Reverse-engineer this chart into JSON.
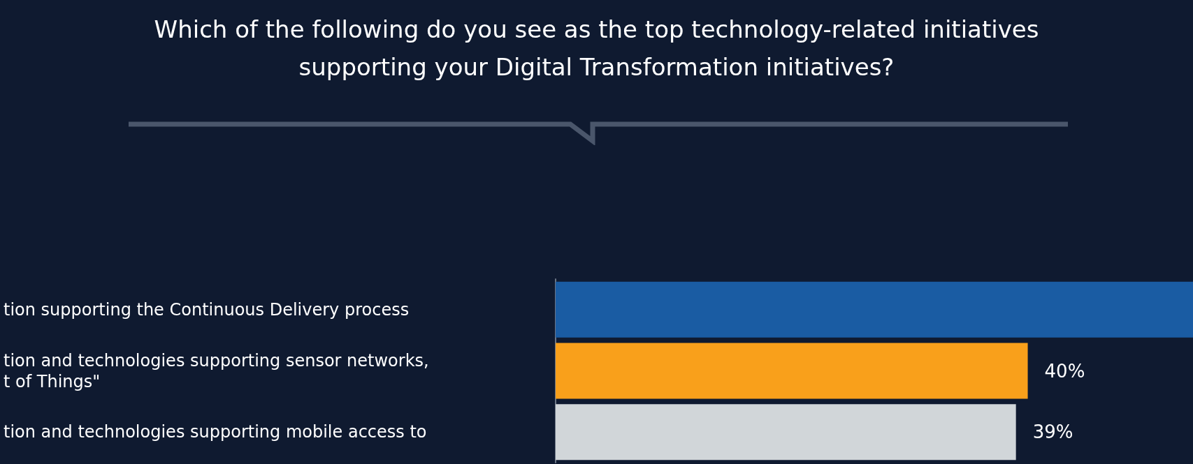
{
  "chart_data": {
    "type": "bar",
    "orientation": "horizontal",
    "title": "Which of the following do you see as the top technology-related initiatives\nsupporting your Digital Transformation initiatives?",
    "categories": [
      "tion supporting the Continuous Delivery process",
      "tion and technologies supporting sensor networks,\nt of Things\"",
      "tion and technologies supporting mobile access to"
    ],
    "values": [
      54,
      40,
      39
    ],
    "value_labels": [
      null,
      "40%",
      "39%"
    ],
    "colors": [
      "#1a5ca3",
      "#f9a01b",
      "#d1d6d9"
    ]
  }
}
